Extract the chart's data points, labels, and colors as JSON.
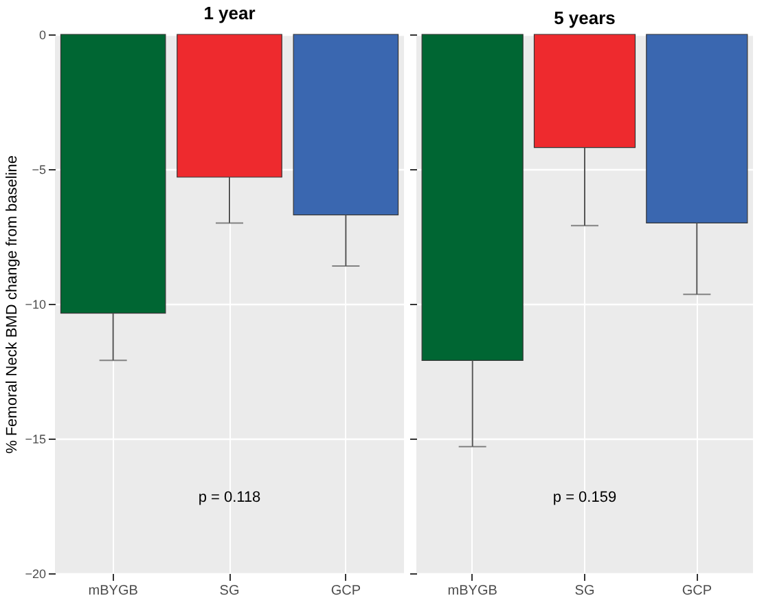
{
  "chart_data": [
    {
      "type": "bar",
      "title": "1 year",
      "ylabel": "% Femoral Neck BMD change from baseline",
      "categories": [
        "mBYGB",
        "SG",
        "GCP"
      ],
      "values": [
        -10.35,
        -5.3,
        -6.7
      ],
      "colors": [
        "#006633",
        "#ee2a2e",
        "#3a67b0"
      ],
      "errors": [
        [
          -12.1,
          -10.35
        ],
        [
          -7.0,
          -5.3
        ],
        [
          -8.6,
          -6.7
        ]
      ],
      "ylim": [
        -20,
        0
      ],
      "yticks": [
        -20,
        -15,
        -10,
        -5,
        0
      ],
      "grid": true,
      "annotations": [
        "p = 0.118"
      ]
    },
    {
      "type": "bar",
      "title": "5 years",
      "categories": [
        "mBYGB",
        "SG",
        "GCP"
      ],
      "values": [
        -12.1,
        -4.2,
        -7.0
      ],
      "colors": [
        "#006633",
        "#ee2a2e",
        "#3a67b0"
      ],
      "errors": [
        [
          -15.3,
          -12.1
        ],
        [
          -7.1,
          -4.2
        ],
        [
          -9.65,
          -7.0
        ]
      ],
      "ylim": [
        -20,
        0
      ],
      "yticks": [
        -20,
        -15,
        -10,
        -5,
        0
      ],
      "grid": true,
      "tick_labels": "x",
      "annotations": [
        "p = 0.159"
      ]
    }
  ]
}
